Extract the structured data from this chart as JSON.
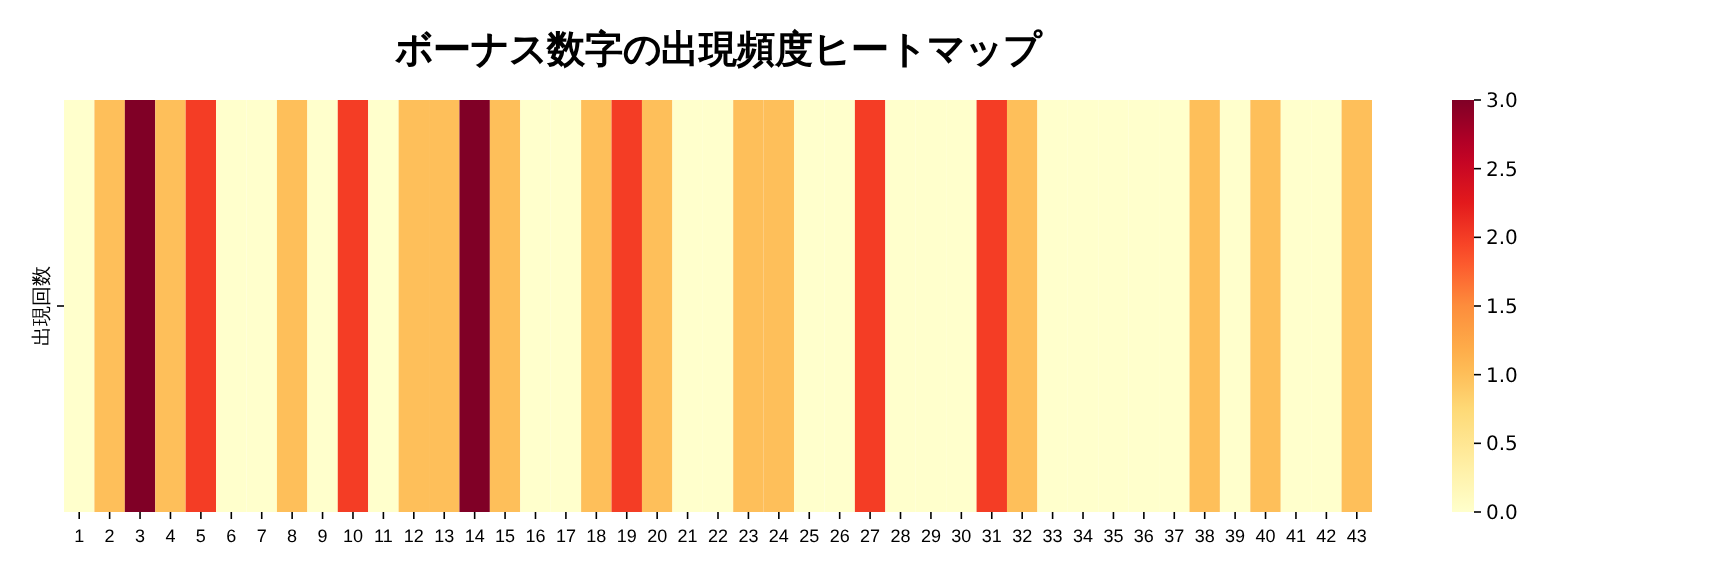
{
  "chart_data": {
    "type": "heatmap",
    "title": "ボーナス数字の出現頻度ヒートマップ",
    "categories": [
      "1",
      "2",
      "3",
      "4",
      "5",
      "6",
      "7",
      "8",
      "9",
      "10",
      "11",
      "12",
      "13",
      "14",
      "15",
      "16",
      "17",
      "18",
      "19",
      "20",
      "21",
      "22",
      "23",
      "24",
      "25",
      "26",
      "27",
      "28",
      "29",
      "30",
      "31",
      "32",
      "33",
      "34",
      "35",
      "36",
      "37",
      "38",
      "39",
      "40",
      "41",
      "42",
      "43"
    ],
    "y_categories": [
      "出現回数"
    ],
    "cells": [
      [
        0,
        1,
        3,
        1,
        2,
        0,
        0,
        1,
        0,
        2,
        0,
        1,
        1,
        3,
        1,
        0,
        0,
        1,
        2,
        1,
        0,
        0,
        1,
        1,
        0,
        0,
        2,
        0,
        0,
        0,
        2,
        1,
        0,
        0,
        0,
        0,
        0,
        1,
        0,
        1,
        0,
        0,
        1
      ]
    ],
    "clim": [
      0,
      3
    ],
    "cticks": [
      {
        "value": 0,
        "label": "0.0"
      },
      {
        "value": 0.5,
        "label": "0.5"
      },
      {
        "value": 1,
        "label": "1.0"
      },
      {
        "value": 1.5,
        "label": "1.5"
      },
      {
        "value": 2,
        "label": "2.0"
      },
      {
        "value": 2.5,
        "label": "2.5"
      },
      {
        "value": 3,
        "label": "3.0"
      }
    ]
  }
}
